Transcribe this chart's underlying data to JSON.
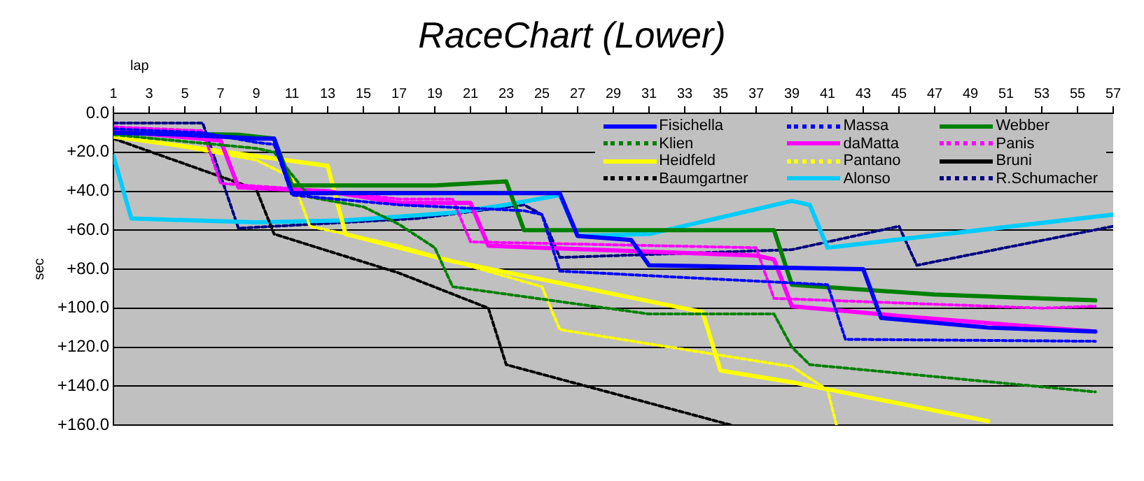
{
  "chart_data": {
    "type": "line",
    "title": "RaceChart (Lower)",
    "xlabel": "lap",
    "ylabel": "sec",
    "xlim": [
      1,
      57
    ],
    "xticks": [
      1,
      3,
      5,
      7,
      9,
      11,
      13,
      15,
      17,
      19,
      21,
      23,
      25,
      27,
      29,
      31,
      33,
      35,
      37,
      39,
      41,
      43,
      45,
      47,
      49,
      51,
      53,
      55,
      57
    ],
    "ylim": [
      160,
      0
    ],
    "yticks": [
      {
        "value": 0,
        "label": "0.0"
      },
      {
        "value": 20,
        "label": "+20.0"
      },
      {
        "value": 40,
        "label": "+40.0"
      },
      {
        "value": 60,
        "label": "+60.0"
      },
      {
        "value": 80,
        "label": "+80.0"
      },
      {
        "value": 100,
        "label": "+100.0"
      },
      {
        "value": 120,
        "label": "+120.0"
      },
      {
        "value": 140,
        "label": "+140.0"
      },
      {
        "value": 160,
        "label": "+160.0"
      }
    ],
    "grid": "y",
    "legend": "top right",
    "series": [
      {
        "name": "Fisichella",
        "color": "#0000ff",
        "line_style": "solid",
        "x": [
          1,
          5,
          9,
          10,
          11,
          25,
          26,
          27,
          30,
          31,
          43,
          44,
          50,
          56
        ],
        "values": [
          10,
          11,
          13,
          13,
          41,
          41,
          41,
          63,
          65,
          78,
          80,
          105,
          110,
          112
        ]
      },
      {
        "name": "Massa",
        "color": "#0000ff",
        "line_style": "dotted",
        "x": [
          1,
          6,
          9,
          10,
          11,
          17,
          24,
          25,
          26,
          41,
          42,
          56
        ],
        "values": [
          8,
          10,
          15,
          16,
          42,
          47,
          50,
          52,
          81,
          88,
          116,
          117
        ]
      },
      {
        "name": "Webber",
        "color": "#008000",
        "line_style": "solid",
        "x": [
          1,
          8,
          10,
          11,
          19,
          23,
          24,
          38,
          39,
          47,
          56
        ],
        "values": [
          10,
          11,
          13,
          37,
          37,
          35,
          60,
          60,
          88,
          93,
          96
        ]
      },
      {
        "name": "Klien",
        "color": "#008000",
        "line_style": "dotted",
        "x": [
          1,
          9,
          10,
          12,
          15,
          17,
          19,
          20,
          31,
          38,
          39,
          40,
          48,
          56
        ],
        "values": [
          11,
          18,
          20,
          43,
          48,
          57,
          69,
          89,
          103,
          103,
          120,
          129,
          136,
          143
        ]
      },
      {
        "name": "daMatta",
        "color": "#ff00ff",
        "line_style": "solid",
        "x": [
          1,
          7,
          8,
          13,
          17,
          21,
          22,
          37,
          38,
          39,
          45,
          56
        ],
        "values": [
          9,
          14,
          38,
          40,
          46,
          46,
          68,
          73,
          75,
          99,
          104,
          112
        ]
      },
      {
        "name": "Panis",
        "color": "#ff00ff",
        "line_style": "dotted",
        "x": [
          1,
          6,
          7,
          13,
          17,
          20,
          21,
          37,
          38,
          53,
          56
        ],
        "values": [
          7,
          9,
          36,
          40,
          44,
          44,
          66,
          69,
          95,
          100,
          99
        ]
      },
      {
        "name": "Heidfeld",
        "color": "#ffff00",
        "line_style": "solid",
        "x": [
          1,
          9,
          13,
          14,
          17,
          20,
          34,
          35,
          39,
          50
        ],
        "values": [
          12,
          22,
          27,
          62,
          69,
          76,
          102,
          132,
          138,
          158
        ]
      },
      {
        "name": "Pantano",
        "color": "#ffff00",
        "line_style": "dotted",
        "x": [
          1,
          9,
          11,
          12,
          17,
          25,
          26,
          39,
          41,
          41.5
        ],
        "values": [
          11,
          24,
          33,
          58,
          68,
          89,
          111,
          130,
          142,
          160
        ]
      },
      {
        "name": "Bruni",
        "color": "#000000",
        "line_style": "solid"
      },
      {
        "name": "Baumgartner",
        "color": "#000000",
        "line_style": "dotted",
        "x": [
          1,
          9,
          10,
          17,
          22,
          23,
          35.6
        ],
        "values": [
          13,
          39,
          62,
          82,
          100,
          129,
          160
        ]
      },
      {
        "name": "Alonso",
        "color": "#00ccff",
        "line_style": "solid",
        "x": [
          1,
          2,
          9,
          14,
          17,
          20,
          23,
          26,
          27,
          31,
          39,
          40,
          41,
          57
        ],
        "values": [
          22,
          54,
          56,
          55,
          53,
          51,
          47,
          42,
          63,
          62,
          45,
          47,
          69,
          52
        ]
      },
      {
        "name": "R.Schumacher",
        "color": "#000080",
        "line_style": "dotted",
        "x": [
          1,
          6,
          8,
          18,
          24,
          25,
          26,
          39,
          45,
          46,
          57
        ],
        "values": [
          5,
          5,
          59,
          54,
          47,
          52,
          74,
          70,
          58,
          78,
          58
        ]
      }
    ]
  }
}
